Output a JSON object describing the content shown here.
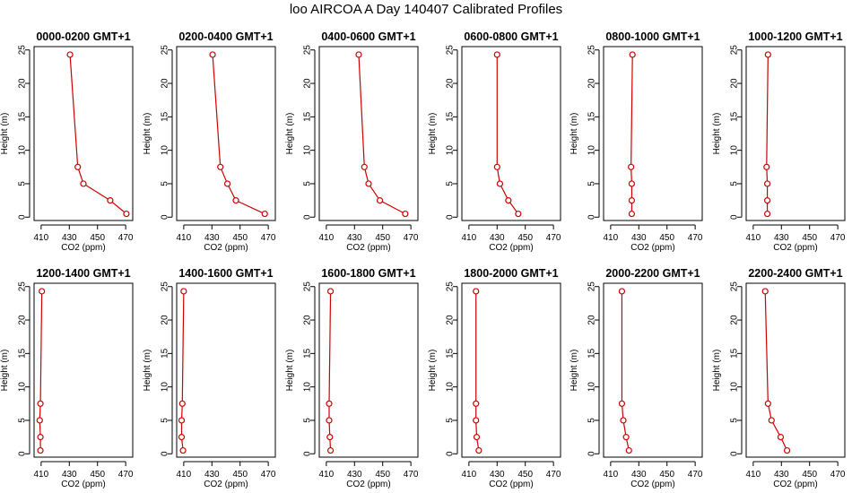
{
  "title": "loo AIRCOA A  Day 140407  Calibrated Profiles",
  "colors": {
    "series": "#cc0000",
    "axes": "#000000",
    "background": "#ffffff"
  },
  "chart_data": [
    {
      "type": "line",
      "title": "0000-0200 GMT+1",
      "xlabel": "CO2 (ppm)",
      "ylabel": "Height (m)",
      "xlim": [
        405,
        475
      ],
      "ylim": [
        -0.5,
        25.5
      ],
      "xticks": [
        410,
        430,
        450,
        470
      ],
      "yticks": [
        0,
        5,
        10,
        15,
        20,
        25
      ],
      "grid": false,
      "series": [
        {
          "x": [
            470.5,
            459.0,
            440.0,
            436.0,
            430.5
          ],
          "y": [
            0.5,
            2.5,
            5.0,
            7.5,
            24.3
          ]
        }
      ]
    },
    {
      "type": "line",
      "title": "0200-0400 GMT+1",
      "xlabel": "CO2 (ppm)",
      "ylabel": "Height (m)",
      "xlim": [
        405,
        475
      ],
      "ylim": [
        -0.5,
        25.5
      ],
      "xticks": [
        410,
        430,
        450,
        470
      ],
      "yticks": [
        0,
        5,
        10,
        15,
        20,
        25
      ],
      "grid": false,
      "series": [
        {
          "x": [
            467.5,
            447.0,
            441.0,
            436.0,
            430.5
          ],
          "y": [
            0.5,
            2.5,
            5.0,
            7.5,
            24.3
          ]
        }
      ]
    },
    {
      "type": "line",
      "title": "0400-0600 GMT+1",
      "xlabel": "CO2 (ppm)",
      "ylabel": "Height (m)",
      "xlim": [
        405,
        475
      ],
      "ylim": [
        -0.5,
        25.5
      ],
      "xticks": [
        410,
        430,
        450,
        470
      ],
      "yticks": [
        0,
        5,
        10,
        15,
        20,
        25
      ],
      "grid": false,
      "series": [
        {
          "x": [
            466.0,
            448.0,
            440.0,
            437.0,
            433.0
          ],
          "y": [
            0.5,
            2.5,
            5.0,
            7.5,
            24.3
          ]
        }
      ]
    },
    {
      "type": "line",
      "title": "0600-0800 GMT+1",
      "xlabel": "CO2 (ppm)",
      "ylabel": "Height (m)",
      "xlim": [
        405,
        475
      ],
      "ylim": [
        -0.5,
        25.5
      ],
      "xticks": [
        410,
        430,
        450,
        470
      ],
      "yticks": [
        0,
        5,
        10,
        15,
        20,
        25
      ],
      "grid": false,
      "series": [
        {
          "x": [
            445.0,
            438.0,
            432.0,
            430.0,
            430.0
          ],
          "y": [
            0.5,
            2.5,
            5.0,
            7.5,
            24.3
          ]
        }
      ]
    },
    {
      "type": "line",
      "title": "0800-1000 GMT+1",
      "xlabel": "CO2 (ppm)",
      "ylabel": "Height (m)",
      "xlim": [
        405,
        475
      ],
      "ylim": [
        -0.5,
        25.5
      ],
      "xticks": [
        410,
        430,
        450,
        470
      ],
      "yticks": [
        0,
        5,
        10,
        15,
        20,
        25
      ],
      "grid": false,
      "series": [
        {
          "x": [
            425.0,
            425.0,
            425.0,
            424.5,
            425.5
          ],
          "y": [
            0.5,
            2.5,
            5.0,
            7.5,
            24.3
          ]
        }
      ]
    },
    {
      "type": "line",
      "title": "1000-1200 GMT+1",
      "xlabel": "CO2 (ppm)",
      "ylabel": "Height (m)",
      "xlim": [
        405,
        475
      ],
      "ylim": [
        -0.5,
        25.5
      ],
      "xticks": [
        410,
        430,
        450,
        470
      ],
      "yticks": [
        0,
        5,
        10,
        15,
        20,
        25
      ],
      "grid": false,
      "series": [
        {
          "x": [
            420.0,
            420.0,
            420.0,
            419.5,
            420.5
          ],
          "y": [
            0.5,
            2.5,
            5.0,
            7.5,
            24.3
          ]
        }
      ]
    },
    {
      "type": "line",
      "title": "1200-1400 GMT+1",
      "xlabel": "CO2 (ppm)",
      "ylabel": "Height (m)",
      "xlim": [
        405,
        475
      ],
      "ylim": [
        -0.5,
        25.5
      ],
      "xticks": [
        410,
        430,
        450,
        470
      ],
      "yticks": [
        0,
        5,
        10,
        15,
        20,
        25
      ],
      "grid": false,
      "series": [
        {
          "x": [
            409.5,
            409.5,
            409.0,
            409.5,
            410.5
          ],
          "y": [
            0.5,
            2.5,
            5.0,
            7.5,
            24.3
          ]
        }
      ]
    },
    {
      "type": "line",
      "title": "1400-1600 GMT+1",
      "xlabel": "CO2 (ppm)",
      "ylabel": "Height (m)",
      "xlim": [
        405,
        475
      ],
      "ylim": [
        -0.5,
        25.5
      ],
      "xticks": [
        410,
        430,
        450,
        470
      ],
      "yticks": [
        0,
        5,
        10,
        15,
        20,
        25
      ],
      "grid": false,
      "series": [
        {
          "x": [
            409.5,
            408.5,
            408.5,
            409.0,
            410.0
          ],
          "y": [
            0.5,
            2.5,
            5.0,
            7.5,
            24.3
          ]
        }
      ]
    },
    {
      "type": "line",
      "title": "1600-1800 GMT+1",
      "xlabel": "CO2 (ppm)",
      "ylabel": "Height (m)",
      "xlim": [
        405,
        475
      ],
      "ylim": [
        -0.5,
        25.5
      ],
      "xticks": [
        410,
        430,
        450,
        470
      ],
      "yticks": [
        0,
        5,
        10,
        15,
        20,
        25
      ],
      "grid": false,
      "series": [
        {
          "x": [
            413.0,
            412.5,
            412.0,
            412.0,
            413.0
          ],
          "y": [
            0.5,
            2.5,
            5.0,
            7.5,
            24.3
          ]
        }
      ]
    },
    {
      "type": "line",
      "title": "1800-2000 GMT+1",
      "xlabel": "CO2 (ppm)",
      "ylabel": "Height (m)",
      "xlim": [
        405,
        475
      ],
      "ylim": [
        -0.5,
        25.5
      ],
      "xticks": [
        410,
        430,
        450,
        470
      ],
      "yticks": [
        0,
        5,
        10,
        15,
        20,
        25
      ],
      "grid": false,
      "series": [
        {
          "x": [
            417.0,
            415.5,
            415.0,
            415.0,
            415.0
          ],
          "y": [
            0.5,
            2.5,
            5.0,
            7.5,
            24.3
          ]
        }
      ]
    },
    {
      "type": "line",
      "title": "2000-2200 GMT+1",
      "xlabel": "CO2 (ppm)",
      "ylabel": "Height (m)",
      "xlim": [
        405,
        475
      ],
      "ylim": [
        -0.5,
        25.5
      ],
      "xticks": [
        410,
        430,
        450,
        470
      ],
      "yticks": [
        0,
        5,
        10,
        15,
        20,
        25
      ],
      "grid": false,
      "series": [
        {
          "x": [
            423.0,
            421.0,
            419.0,
            418.0,
            418.0
          ],
          "y": [
            0.5,
            2.5,
            5.0,
            7.5,
            24.3
          ]
        }
      ]
    },
    {
      "type": "line",
      "title": "2200-2400 GMT+1",
      "xlabel": "CO2 (ppm)",
      "ylabel": "Height (m)",
      "xlim": [
        405,
        475
      ],
      "ylim": [
        -0.5,
        25.5
      ],
      "xticks": [
        410,
        430,
        450,
        470
      ],
      "yticks": [
        0,
        5,
        10,
        15,
        20,
        25
      ],
      "grid": false,
      "series": [
        {
          "x": [
            434.0,
            429.5,
            423.0,
            420.5,
            418.5
          ],
          "y": [
            0.5,
            2.5,
            5.0,
            7.5,
            24.3
          ]
        }
      ]
    }
  ]
}
